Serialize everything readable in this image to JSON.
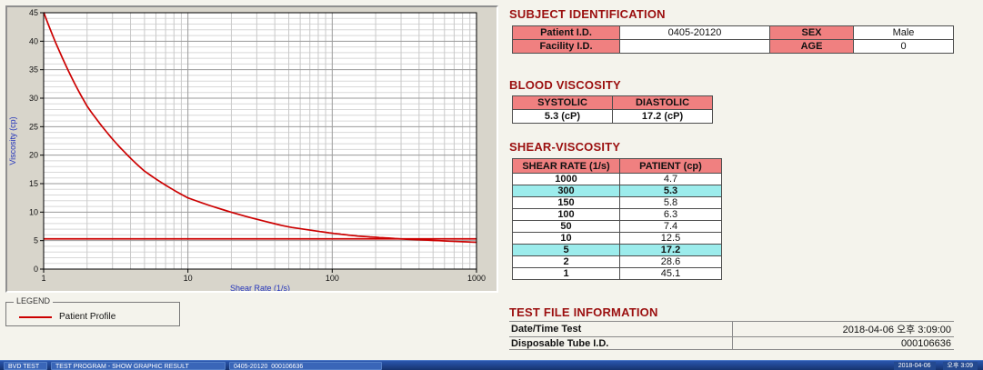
{
  "chart_data": {
    "type": "line",
    "title": "",
    "xlabel": "Shear Rate (1/s)",
    "ylabel": "Viscosity (cp)",
    "x_scale": "log",
    "xlim": [
      1,
      1000
    ],
    "ylim": [
      0,
      45
    ],
    "x_ticks": [
      1,
      10,
      100,
      1000
    ],
    "y_ticks": [
      0,
      5,
      10,
      15,
      20,
      25,
      30,
      35,
      40,
      45
    ],
    "grid": true,
    "legend_position": "bottom-left",
    "reference_line_y": 5.3,
    "series": [
      {
        "name": "Patient Profile",
        "color": "#cc0000",
        "x": [
          1,
          2,
          5,
          10,
          50,
          100,
          150,
          300,
          1000
        ],
        "y": [
          45.1,
          28.6,
          17.2,
          12.5,
          7.4,
          6.3,
          5.8,
          5.3,
          4.7
        ]
      }
    ]
  },
  "legend": {
    "title": "LEGEND",
    "entry": "Patient Profile"
  },
  "subject": {
    "heading": "SUBJECT IDENTIFICATION",
    "rows": [
      {
        "label1": "Patient I.D.",
        "value1": "0405-20120",
        "label2": "SEX",
        "value2": "Male"
      },
      {
        "label1": "Facility I.D.",
        "value1": "",
        "label2": "AGE",
        "value2": "0"
      }
    ]
  },
  "blood_viscosity": {
    "heading": "BLOOD VISCOSITY",
    "col1": "SYSTOLIC",
    "col2": "DIASTOLIC",
    "val1": "5.3 (cP)",
    "val2": "17.2 (cP)"
  },
  "shear_viscosity": {
    "heading": "SHEAR-VISCOSITY",
    "col1": "SHEAR RATE (1/s)",
    "col2": "PATIENT (cp)",
    "rows": [
      {
        "rate": "1000",
        "value": "4.7",
        "highlight": false
      },
      {
        "rate": "300",
        "value": "5.3",
        "highlight": true
      },
      {
        "rate": "150",
        "value": "5.8",
        "highlight": false
      },
      {
        "rate": "100",
        "value": "6.3",
        "highlight": false
      },
      {
        "rate": "50",
        "value": "7.4",
        "highlight": false
      },
      {
        "rate": "10",
        "value": "12.5",
        "highlight": false
      },
      {
        "rate": "5",
        "value": "17.2",
        "highlight": true
      },
      {
        "rate": "2",
        "value": "28.6",
        "highlight": false
      },
      {
        "rate": "1",
        "value": "45.1",
        "highlight": false
      }
    ]
  },
  "test_file": {
    "heading": "TEST FILE INFORMATION",
    "rows": [
      {
        "label": "Date/Time Test",
        "value": "2018-04-06  오후 3:09:00"
      },
      {
        "label": "Disposable Tube I.D.",
        "value": "000106636"
      }
    ]
  },
  "taskbar": {
    "buttons": [
      "BVD TEST",
      "TEST PROGRAM - SHOW GRAPHIC RESULT",
      "0405-20120_000106636"
    ],
    "date": "2018-04-06",
    "time": "오후 3:09"
  },
  "colors": {
    "heading": "#9b0f0f",
    "table_header_pink": "#f08080",
    "highlight_cyan": "#9cecec",
    "curve_red": "#cc0000",
    "axis_label_blue": "#2233bb"
  }
}
